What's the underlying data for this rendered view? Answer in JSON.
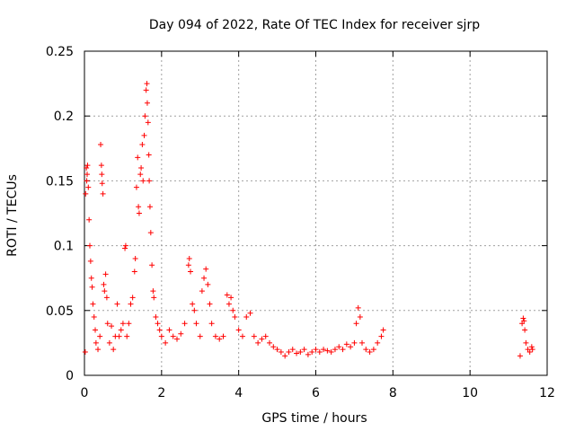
{
  "chart_data": {
    "type": "scatter",
    "title": "Day 094 of 2022, Rate Of TEC Index for receiver sjrp",
    "xlabel": "GPS time / hours",
    "ylabel": "ROTI / TECUs",
    "xlim": [
      0,
      12
    ],
    "ylim": [
      0,
      0.25
    ],
    "xticks": [
      "0",
      "2",
      "4",
      "6",
      "8",
      "10",
      "12"
    ],
    "yticks": [
      "0",
      "0.05",
      "0.1",
      "0.15",
      "0.2",
      "0.25"
    ],
    "grid": true,
    "marker": "+",
    "color": "#ff0000",
    "series": [
      {
        "name": "sjrp ROTI",
        "points": [
          [
            0.02,
            0.018
          ],
          [
            0.03,
            0.14
          ],
          [
            0.05,
            0.16
          ],
          [
            0.06,
            0.15
          ],
          [
            0.07,
            0.155
          ],
          [
            0.08,
            0.162
          ],
          [
            0.1,
            0.145
          ],
          [
            0.12,
            0.12
          ],
          [
            0.14,
            0.1
          ],
          [
            0.16,
            0.088
          ],
          [
            0.18,
            0.075
          ],
          [
            0.2,
            0.068
          ],
          [
            0.22,
            0.055
          ],
          [
            0.25,
            0.045
          ],
          [
            0.28,
            0.035
          ],
          [
            0.3,
            0.025
          ],
          [
            0.35,
            0.02
          ],
          [
            0.4,
            0.03
          ],
          [
            0.42,
            0.178
          ],
          [
            0.44,
            0.162
          ],
          [
            0.45,
            0.155
          ],
          [
            0.46,
            0.148
          ],
          [
            0.48,
            0.14
          ],
          [
            0.5,
            0.07
          ],
          [
            0.52,
            0.065
          ],
          [
            0.55,
            0.078
          ],
          [
            0.58,
            0.06
          ],
          [
            0.6,
            0.04
          ],
          [
            0.65,
            0.025
          ],
          [
            0.7,
            0.038
          ],
          [
            0.75,
            0.02
          ],
          [
            0.8,
            0.03
          ],
          [
            0.85,
            0.055
          ],
          [
            0.9,
            0.03
          ],
          [
            0.95,
            0.035
          ],
          [
            1.0,
            0.04
          ],
          [
            1.05,
            0.098
          ],
          [
            1.07,
            0.1
          ],
          [
            1.1,
            0.03
          ],
          [
            1.15,
            0.04
          ],
          [
            1.2,
            0.055
          ],
          [
            1.25,
            0.06
          ],
          [
            1.3,
            0.08
          ],
          [
            1.32,
            0.09
          ],
          [
            1.35,
            0.145
          ],
          [
            1.38,
            0.168
          ],
          [
            1.4,
            0.13
          ],
          [
            1.42,
            0.125
          ],
          [
            1.45,
            0.155
          ],
          [
            1.47,
            0.16
          ],
          [
            1.5,
            0.178
          ],
          [
            1.52,
            0.15
          ],
          [
            1.55,
            0.185
          ],
          [
            1.57,
            0.2
          ],
          [
            1.6,
            0.22
          ],
          [
            1.62,
            0.225
          ],
          [
            1.63,
            0.21
          ],
          [
            1.65,
            0.195
          ],
          [
            1.67,
            0.17
          ],
          [
            1.68,
            0.15
          ],
          [
            1.7,
            0.13
          ],
          [
            1.72,
            0.11
          ],
          [
            1.75,
            0.085
          ],
          [
            1.78,
            0.065
          ],
          [
            1.8,
            0.06
          ],
          [
            1.85,
            0.045
          ],
          [
            1.9,
            0.04
          ],
          [
            1.95,
            0.035
          ],
          [
            2.0,
            0.03
          ],
          [
            2.1,
            0.025
          ],
          [
            2.2,
            0.035
          ],
          [
            2.3,
            0.03
          ],
          [
            2.4,
            0.028
          ],
          [
            2.5,
            0.032
          ],
          [
            2.6,
            0.04
          ],
          [
            2.7,
            0.085
          ],
          [
            2.72,
            0.09
          ],
          [
            2.75,
            0.08
          ],
          [
            2.8,
            0.055
          ],
          [
            2.85,
            0.05
          ],
          [
            2.9,
            0.04
          ],
          [
            3.0,
            0.03
          ],
          [
            3.05,
            0.065
          ],
          [
            3.1,
            0.075
          ],
          [
            3.15,
            0.082
          ],
          [
            3.2,
            0.07
          ],
          [
            3.25,
            0.055
          ],
          [
            3.3,
            0.04
          ],
          [
            3.4,
            0.03
          ],
          [
            3.5,
            0.028
          ],
          [
            3.6,
            0.03
          ],
          [
            3.7,
            0.062
          ],
          [
            3.75,
            0.055
          ],
          [
            3.8,
            0.06
          ],
          [
            3.85,
            0.05
          ],
          [
            3.9,
            0.045
          ],
          [
            4.0,
            0.035
          ],
          [
            4.1,
            0.03
          ],
          [
            4.2,
            0.045
          ],
          [
            4.3,
            0.048
          ],
          [
            4.4,
            0.03
          ],
          [
            4.5,
            0.025
          ],
          [
            4.6,
            0.028
          ],
          [
            4.7,
            0.03
          ],
          [
            4.8,
            0.025
          ],
          [
            4.9,
            0.022
          ],
          [
            5.0,
            0.02
          ],
          [
            5.1,
            0.018
          ],
          [
            5.2,
            0.015
          ],
          [
            5.3,
            0.018
          ],
          [
            5.4,
            0.02
          ],
          [
            5.5,
            0.017
          ],
          [
            5.6,
            0.018
          ],
          [
            5.7,
            0.02
          ],
          [
            5.8,
            0.016
          ],
          [
            5.9,
            0.018
          ],
          [
            6.0,
            0.02
          ],
          [
            6.1,
            0.018
          ],
          [
            6.2,
            0.02
          ],
          [
            6.3,
            0.019
          ],
          [
            6.4,
            0.018
          ],
          [
            6.5,
            0.02
          ],
          [
            6.6,
            0.022
          ],
          [
            6.7,
            0.02
          ],
          [
            6.8,
            0.024
          ],
          [
            6.9,
            0.022
          ],
          [
            7.0,
            0.025
          ],
          [
            7.05,
            0.04
          ],
          [
            7.1,
            0.052
          ],
          [
            7.15,
            0.045
          ],
          [
            7.2,
            0.025
          ],
          [
            7.3,
            0.02
          ],
          [
            7.4,
            0.018
          ],
          [
            7.5,
            0.02
          ],
          [
            7.6,
            0.025
          ],
          [
            7.7,
            0.03
          ],
          [
            7.75,
            0.035
          ],
          [
            11.3,
            0.015
          ],
          [
            11.35,
            0.04
          ],
          [
            11.38,
            0.044
          ],
          [
            11.4,
            0.042
          ],
          [
            11.42,
            0.035
          ],
          [
            11.45,
            0.025
          ],
          [
            11.5,
            0.02
          ],
          [
            11.55,
            0.018
          ],
          [
            11.6,
            0.022
          ],
          [
            11.62,
            0.02
          ]
        ]
      }
    ]
  }
}
